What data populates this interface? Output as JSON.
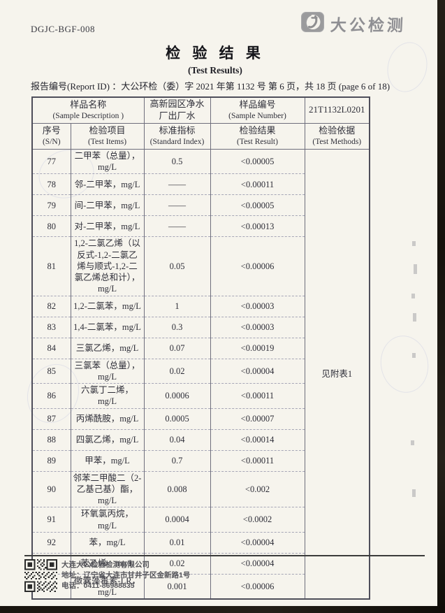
{
  "page": {
    "doc_code": "DGJC-BGF-008",
    "logo_text": "大公检测",
    "title": "检 验 结 果",
    "subtitle": "(Test Results)",
    "report_line": "报告编号(Report ID) ：大公环检（委）字 2021 年第 1132 号  第 6 页，共 18 页  (page 6 of 18)"
  },
  "table": {
    "header": {
      "sample_desc_label": "样品名称",
      "sample_desc_label_en": "(Sample Description )",
      "sample_desc_value": "高新园区净水厂出厂水",
      "sample_number_label": "样品编号",
      "sample_number_label_en": "(Sample  Number)",
      "sample_number_value": "21T1132L0201",
      "col_sn": "序号",
      "col_sn_en": "(S/N)",
      "col_item": "检验项目",
      "col_item_en": "(Test Items)",
      "col_index": "标准指标",
      "col_index_en": "(Standard Index)",
      "col_result": "检验结果",
      "col_result_en": "(Test Result)",
      "col_method": "检验依据",
      "col_method_en": "(Test Methods)"
    },
    "method_value": "见附表1",
    "rows": [
      {
        "sn": "77",
        "item": "二甲苯（总量），mg/L",
        "index": "0.5",
        "result": "<0.00005"
      },
      {
        "sn": "78",
        "item": "邻-二甲苯，mg/L",
        "index": "——",
        "result": "<0.00011"
      },
      {
        "sn": "79",
        "item": "间-二甲苯，mg/L",
        "index": "——",
        "result": "<0.00005"
      },
      {
        "sn": "80",
        "item": "对-二甲苯，mg/L",
        "index": "——",
        "result": "<0.00013"
      },
      {
        "sn": "81",
        "item": "1,2-二氯乙烯（以反式-1,2-二氯乙烯与顺式-1,2-二氯乙烯总和计），mg/L",
        "index": "0.05",
        "result": "<0.00006"
      },
      {
        "sn": "82",
        "item": "1,2-二氯苯，mg/L",
        "index": "1",
        "result": "<0.00003"
      },
      {
        "sn": "83",
        "item": "1,4-二氯苯，mg/L",
        "index": "0.3",
        "result": "<0.00003"
      },
      {
        "sn": "84",
        "item": "三氯乙烯，mg/L",
        "index": "0.07",
        "result": "<0.00019"
      },
      {
        "sn": "85",
        "item": "三氯苯（总量），mg/L",
        "index": "0.02",
        "result": "<0.00004"
      },
      {
        "sn": "86",
        "item": "六氯丁二烯，mg/L",
        "index": "0.0006",
        "result": "<0.00011"
      },
      {
        "sn": "87",
        "item": "丙烯酰胺，mg/L",
        "index": "0.0005",
        "result": "<0.00007"
      },
      {
        "sn": "88",
        "item": "四氯乙烯，mg/L",
        "index": "0.04",
        "result": "<0.00014"
      },
      {
        "sn": "89",
        "item": "甲苯，mg/L",
        "index": "0.7",
        "result": "<0.00011"
      },
      {
        "sn": "90",
        "item": "邻苯二甲酸二（2-乙基己基）酯，mg/L",
        "index": "0.008",
        "result": "<0.002"
      },
      {
        "sn": "91",
        "item": "环氧氯丙烷，mg/L",
        "index": "0.0004",
        "result": "<0.0002"
      },
      {
        "sn": "92",
        "item": "苯，mg/L",
        "index": "0.01",
        "result": "<0.00004"
      },
      {
        "sn": "93",
        "item": "苯乙烯，mg/L",
        "index": "0.02",
        "result": "<0.00004"
      },
      {
        "sn": "94",
        "item": "微囊藻毒素-LR，mg/L",
        "index": "0.001",
        "result": "<0.00006"
      }
    ]
  },
  "footer": {
    "company": "大连大公检验检测有限公司",
    "address": "地址：辽宁省大连市甘井子区金新路1号",
    "phone": "电话：0411-86988835"
  },
  "icons": {
    "logo_icon": "dagong-swoosh-logo",
    "qr_code": "qr-code"
  },
  "colors": {
    "paper": "#f6f4ed",
    "table_border": "#4e4e5a",
    "logo_gray": "#8f8f93",
    "scan_edge": "#17130e"
  }
}
